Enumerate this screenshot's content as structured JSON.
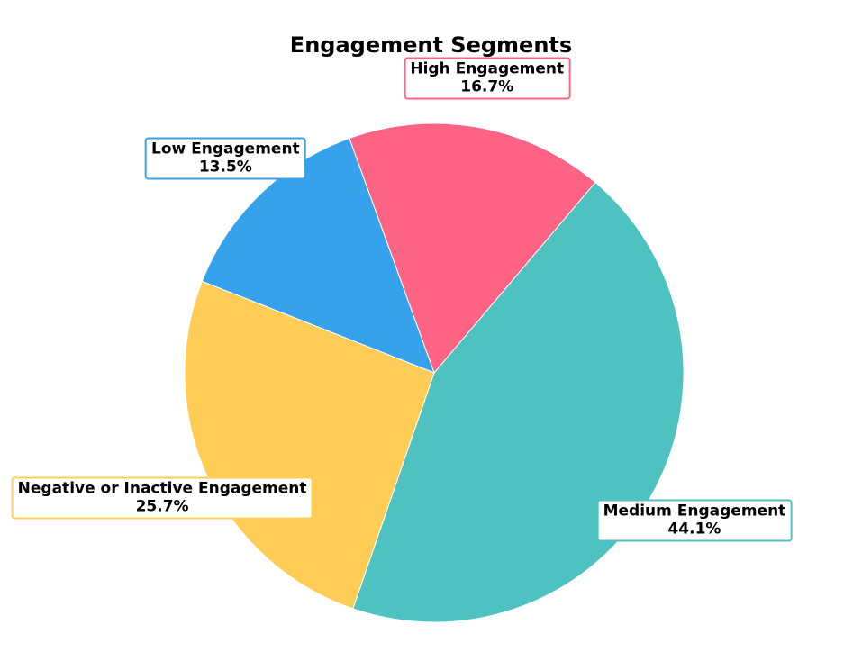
{
  "chart_data": {
    "type": "pie",
    "title": "Engagement Segments",
    "categories": [
      "Medium Engagement",
      "High Engagement",
      "Low Engagement",
      "Negative or Inactive Engagement"
    ],
    "values": [
      44.1,
      16.7,
      13.5,
      25.7
    ],
    "labels": [
      "44.1%",
      "16.7%",
      "13.5%",
      "25.7%"
    ],
    "colors": [
      "#4EC1C1",
      "#FF6384",
      "#36A2EB",
      "#FFCD56"
    ]
  }
}
